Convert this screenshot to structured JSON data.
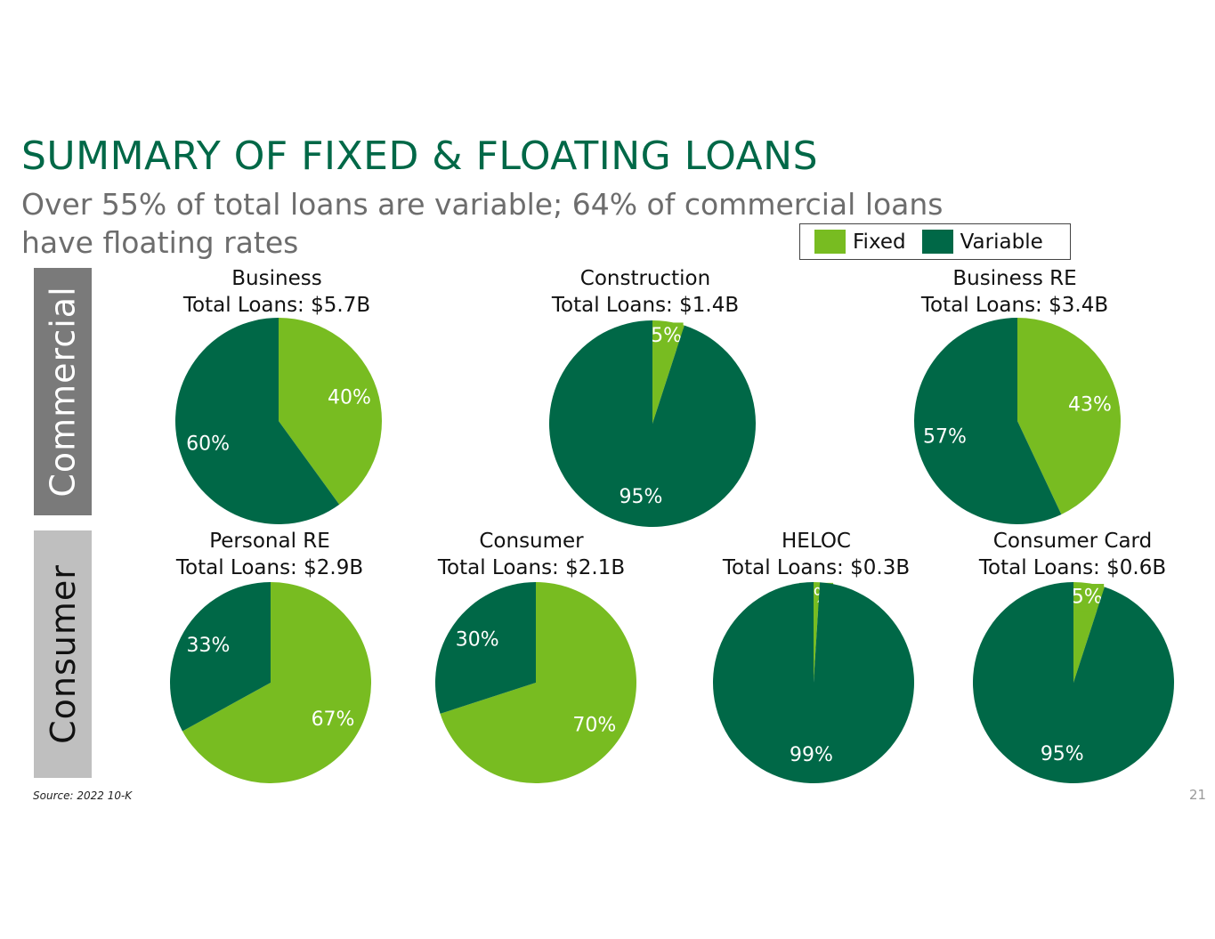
{
  "title": "SUMMARY OF FIXED & FLOATING LOANS",
  "subtitle": "Over 55% of total loans are variable; 64% of commercial loans have floating rates",
  "legend": {
    "fixed": "Fixed",
    "variable": "Variable",
    "fixed_color": "#78bc21",
    "variable_color": "#006847"
  },
  "sections": {
    "commercial": "Commercial",
    "consumer": "Consumer"
  },
  "source": "Source: 2022 10-K",
  "page_number": "21",
  "chart_data": [
    {
      "type": "pie",
      "title": "Business",
      "subtitle": "Total Loans: $5.7B",
      "categories": [
        "Fixed",
        "Variable"
      ],
      "values": [
        40,
        60
      ],
      "labels": [
        "40%",
        "60%"
      ]
    },
    {
      "type": "pie",
      "title": "Construction",
      "subtitle": "Total Loans: $1.4B",
      "categories": [
        "Fixed",
        "Variable"
      ],
      "values": [
        5,
        95
      ],
      "labels": [
        "5%",
        "95%"
      ]
    },
    {
      "type": "pie",
      "title": "Business RE",
      "subtitle": "Total Loans: $3.4B",
      "categories": [
        "Fixed",
        "Variable"
      ],
      "values": [
        43,
        57
      ],
      "labels": [
        "43%",
        "57%"
      ]
    },
    {
      "type": "pie",
      "title": "Personal RE",
      "subtitle": "Total Loans: $2.9B",
      "categories": [
        "Fixed",
        "Variable"
      ],
      "values": [
        67,
        33
      ],
      "labels": [
        "67%",
        "33%"
      ]
    },
    {
      "type": "pie",
      "title": "Consumer",
      "subtitle": "Total Loans: $2.1B",
      "categories": [
        "Fixed",
        "Variable"
      ],
      "values": [
        70,
        30
      ],
      "labels": [
        "70%",
        "30%"
      ]
    },
    {
      "type": "pie",
      "title": "HELOC",
      "subtitle": "Total Loans: $0.3B",
      "categories": [
        "Fixed",
        "Variable"
      ],
      "values": [
        1,
        99
      ],
      "labels": [
        "1%",
        "99%"
      ]
    },
    {
      "type": "pie",
      "title": "Consumer Card",
      "subtitle": "Total Loans: $0.6B",
      "categories": [
        "Fixed",
        "Variable"
      ],
      "values": [
        5,
        95
      ],
      "labels": [
        "5%",
        "95%"
      ]
    }
  ]
}
